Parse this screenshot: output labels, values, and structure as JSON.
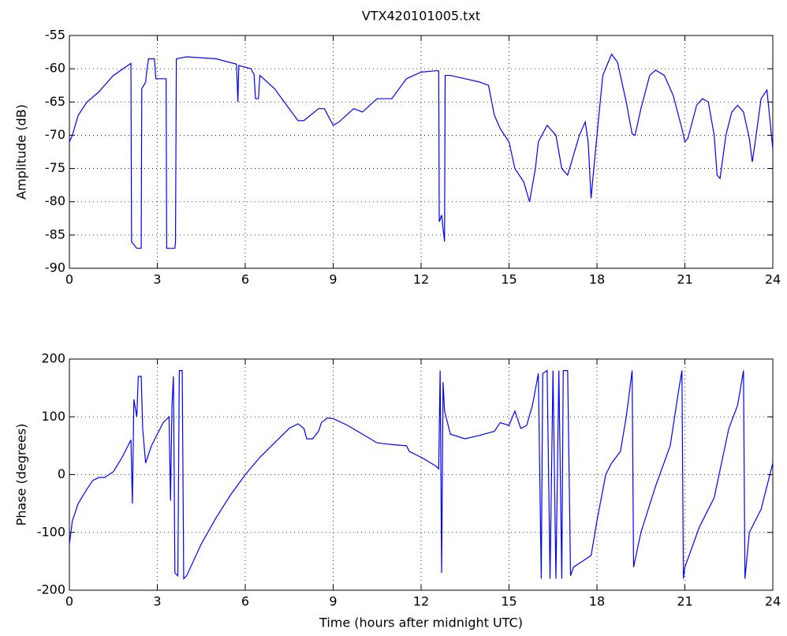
{
  "chart_data": [
    {
      "type": "line",
      "title": "VTX420101005.txt",
      "ylabel": "Amplitude (dB)",
      "color": "#0000ff",
      "grid": true,
      "xlim": [
        0,
        24
      ],
      "xticks": [
        0,
        3,
        6,
        9,
        12,
        15,
        18,
        21,
        24
      ],
      "ylim": [
        -90,
        -55
      ],
      "yticks": [
        -90,
        -85,
        -80,
        -75,
        -70,
        -65,
        -60,
        -55
      ],
      "x": [
        0,
        0.1,
        0.3,
        0.6,
        1,
        1.5,
        2,
        2.1,
        2.12,
        2.3,
        2.45,
        2.47,
        2.6,
        2.65,
        2.7,
        2.9,
        2.95,
        3.3,
        3.32,
        3.6,
        3.62,
        3.65,
        4,
        5,
        5.7,
        5.75,
        5.78,
        6.2,
        6.25,
        6.3,
        6.35,
        6.45,
        6.5,
        7,
        7.5,
        7.8,
        8,
        8.5,
        8.7,
        9,
        9.2,
        9.7,
        10,
        10.5,
        11,
        11.5,
        12,
        12.5,
        12.6,
        12.62,
        12.7,
        12.8,
        12.82,
        13,
        13.5,
        14,
        14.3,
        14.5,
        14.7,
        15,
        15.2,
        15.5,
        15.7,
        15.9,
        16,
        16.3,
        16.6,
        16.8,
        17,
        17.2,
        17.4,
        17.6,
        17.7,
        17.8,
        17.85,
        18,
        18.2,
        18.5,
        18.7,
        19,
        19.2,
        19.3,
        19.5,
        19.8,
        20,
        20.3,
        20.6,
        20.9,
        21,
        21.1,
        21.4,
        21.6,
        21.8,
        22,
        22.1,
        22.2,
        22.4,
        22.6,
        22.8,
        23,
        23.2,
        23.3,
        23.4,
        23.6,
        23.8,
        24
      ],
      "values": [
        -71,
        -70,
        -67,
        -65,
        -63.5,
        -61,
        -59.5,
        -59.2,
        -86,
        -87,
        -87,
        -63,
        -62,
        -60,
        -58.5,
        -58.5,
        -61.5,
        -61.5,
        -87,
        -87,
        -86,
        -58.5,
        -58.2,
        -58.5,
        -59.3,
        -65,
        -59.5,
        -60,
        -60.5,
        -60.8,
        -64.5,
        -64.5,
        -61,
        -63,
        -66,
        -67.8,
        -67.8,
        -66,
        -66,
        -68.5,
        -68,
        -66,
        -66.5,
        -64.5,
        -64.5,
        -61.5,
        -60.5,
        -60.3,
        -60.3,
        -83,
        -82,
        -86,
        -61,
        -61,
        -61.5,
        -62,
        -62.5,
        -67,
        -69,
        -71,
        -75,
        -77,
        -80,
        -75,
        -71,
        -68.5,
        -70,
        -75,
        -76,
        -73,
        -70,
        -68,
        -71,
        -79.5,
        -77,
        -70,
        -61,
        -57.8,
        -59,
        -65,
        -69.8,
        -70,
        -66,
        -61,
        -60.2,
        -61,
        -64,
        -69,
        -71,
        -70.5,
        -65.5,
        -64.5,
        -65,
        -70,
        -76,
        -76.5,
        -70,
        -66.5,
        -65.5,
        -66.5,
        -70.5,
        -74,
        -71,
        -64.5,
        -63.2,
        -72
      ]
    },
    {
      "type": "line",
      "xlabel": "Time (hours after midnight UTC)",
      "ylabel": "Phase (degrees)",
      "color": "#0000ff",
      "grid": true,
      "xlim": [
        0,
        24
      ],
      "xticks": [
        0,
        3,
        6,
        9,
        12,
        15,
        18,
        21,
        24
      ],
      "ylim": [
        -200,
        200
      ],
      "yticks": [
        -200,
        -100,
        0,
        100,
        200
      ],
      "x": [
        0,
        0.1,
        0.3,
        0.6,
        0.8,
        1,
        1.2,
        1.5,
        1.8,
        2,
        2.1,
        2.15,
        2.2,
        2.3,
        2.35,
        2.45,
        2.5,
        2.6,
        2.8,
        3,
        3.2,
        3.4,
        3.45,
        3.5,
        3.55,
        3.6,
        3.7,
        3.75,
        3.85,
        3.9,
        4,
        4.5,
        5,
        5.5,
        6,
        6.5,
        7,
        7.5,
        7.8,
        8,
        8.1,
        8.3,
        8.5,
        8.6,
        8.8,
        9,
        9.5,
        10,
        10.5,
        11,
        11.5,
        11.6,
        12,
        12.5,
        12.6,
        12.65,
        12.7,
        12.75,
        12.8,
        13,
        13.5,
        14,
        14.5,
        14.7,
        15,
        15.2,
        15.4,
        15.6,
        15.8,
        16,
        16.1,
        16.15,
        16.3,
        16.4,
        16.5,
        16.6,
        16.7,
        16.8,
        16.85,
        17,
        17.1,
        17.2,
        17.5,
        17.8,
        18,
        18.3,
        18.5,
        18.8,
        19,
        19.2,
        19.25,
        19.5,
        20,
        20.5,
        20.8,
        20.9,
        20.95,
        21,
        21.5,
        22,
        22.5,
        22.8,
        23,
        23.05,
        23.2,
        23.6,
        24
      ],
      "values": [
        -120,
        -80,
        -50,
        -25,
        -10,
        -5,
        -5,
        5,
        30,
        50,
        60,
        -50,
        130,
        100,
        170,
        170,
        80,
        20,
        50,
        70,
        90,
        100,
        -45,
        120,
        170,
        -170,
        -175,
        180,
        180,
        -180,
        -175,
        -120,
        -75,
        -35,
        0,
        30,
        55,
        80,
        88,
        80,
        62,
        62,
        75,
        90,
        98,
        97,
        85,
        70,
        55,
        52,
        50,
        40,
        30,
        15,
        10,
        180,
        -170,
        160,
        110,
        70,
        62,
        68,
        75,
        90,
        85,
        110,
        80,
        85,
        120,
        175,
        -180,
        175,
        180,
        -180,
        180,
        -180,
        180,
        -180,
        180,
        180,
        -175,
        -160,
        -150,
        -140,
        -80,
        0,
        20,
        40,
        100,
        180,
        -160,
        -100,
        -20,
        50,
        150,
        180,
        -180,
        -160,
        -90,
        -40,
        80,
        120,
        180,
        -180,
        -100,
        -60,
        20
      ]
    }
  ]
}
